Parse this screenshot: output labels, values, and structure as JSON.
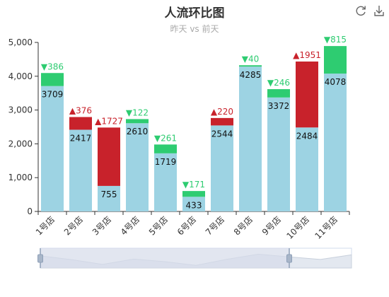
{
  "title": "人流环比图",
  "subtitle": "昨天 vs 前天",
  "toolbox": {
    "refresh_icon": "refresh-icon",
    "download_icon": "download-icon"
  },
  "colors": {
    "base": "#9dd3e3",
    "up": "#c8222b",
    "down": "#2ecc71",
    "axis": "#333333",
    "zoom_fill": "#d5dcea"
  },
  "chart_data": {
    "type": "bar",
    "title": "人流环比图",
    "subtitle": "昨天 vs 前天",
    "categories": [
      "1号店",
      "2号店",
      "3号店",
      "4号店",
      "5号店",
      "6号店",
      "7号店",
      "8号店",
      "9号店",
      "10号店",
      "11号店"
    ],
    "series": [
      {
        "values": [
          3709,
          2417,
          755,
          2610,
          1719,
          433,
          2544,
          4285,
          3372,
          2484,
          4078
        ]
      },
      {
        "values": [
          4095,
          2793,
          2482,
          2732,
          1980,
          604,
          2764,
          4325,
          3618,
          4435,
          4893
        ]
      }
    ],
    "diffs": [
      386,
      376,
      1727,
      122,
      261,
      171,
      220,
      40,
      246,
      1951,
      815
    ],
    "directions": [
      "down",
      "up",
      "up",
      "down",
      "down",
      "down",
      "up",
      "down",
      "down",
      "up",
      "down"
    ],
    "ylim": [
      0,
      5000
    ],
    "yticks": [
      0,
      1000,
      2000,
      3000,
      4000,
      5000
    ],
    "ytick_labels": [
      "0",
      "1,000",
      "2,000",
      "3,000",
      "4,000",
      "5,000"
    ],
    "grid": false,
    "datazoom": {
      "start": 0,
      "end": 0.8
    }
  }
}
